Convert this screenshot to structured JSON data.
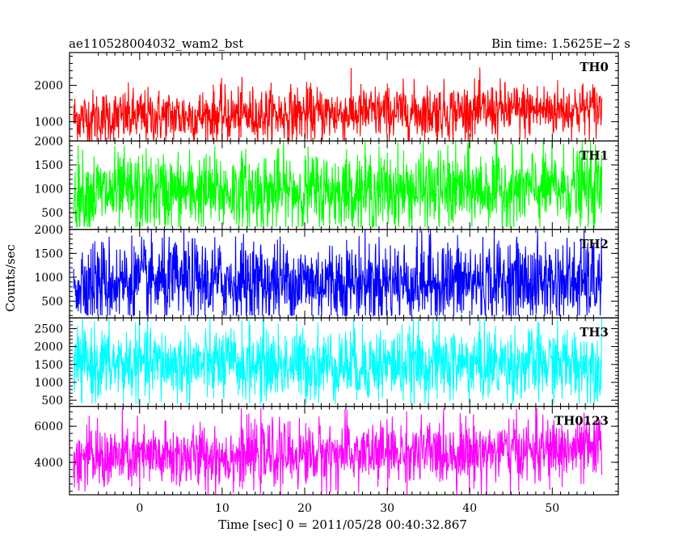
{
  "header": {
    "left_title": "ae110528004032_wam2_bst",
    "right_title": "Bin time: 1.5625E−2 s"
  },
  "ylabel": "Counts/sec",
  "xlabel": "Time [sec] 0 = 2011/05/28 00:40:32.867",
  "chart_data": {
    "type": "line",
    "title": "ae110528004032_wam2_bst",
    "subtitle": "Bin time: 1.5625E−2 s",
    "xlabel": "Time [sec] 0 = 2011/05/28 00:40:32.867",
    "ylabel": "Counts/sec",
    "xlim": [
      -8.5,
      58
    ],
    "x_ticks": [
      0,
      10,
      20,
      30,
      40,
      50
    ],
    "x_range_data": [
      -8,
      56
    ],
    "grid": false,
    "panels": [
      {
        "name": "TH0",
        "color": "#ff0000",
        "ylim": [
          470,
          2900
        ],
        "y_ticks": [
          1000,
          2000
        ],
        "mean_start": 1100,
        "mean_end": 1350,
        "spread": 380,
        "max_value": 2900,
        "min_value": 470
      },
      {
        "name": "TH1",
        "color": "#00ff00",
        "ylim": [
          150,
          2000
        ],
        "y_ticks": [
          500,
          1000,
          1500,
          2000
        ],
        "mean_start": 900,
        "mean_end": 1000,
        "spread": 420,
        "max_value": 2000,
        "min_value": 200
      },
      {
        "name": "TH2",
        "color": "#0000ff",
        "ylim": [
          150,
          2000
        ],
        "y_ticks": [
          500,
          1000,
          1500,
          2000
        ],
        "mean_start": 900,
        "mean_end": 900,
        "spread": 450,
        "max_value": 2000,
        "min_value": 200
      },
      {
        "name": "TH3",
        "color": "#00ffff",
        "ylim": [
          330,
          2800
        ],
        "y_ticks": [
          500,
          1000,
          1500,
          2000,
          2500
        ],
        "mean_start": 1500,
        "mean_end": 1500,
        "spread": 520,
        "max_value": 2800,
        "min_value": 400
      },
      {
        "name": "TH0123",
        "color": "#ff00ff",
        "ylim": [
          2200,
          7100
        ],
        "y_ticks": [
          4000,
          6000
        ],
        "mean_start": 4200,
        "mean_end": 4700,
        "spread": 900,
        "max_value": 7000,
        "min_value": 2200
      }
    ]
  }
}
